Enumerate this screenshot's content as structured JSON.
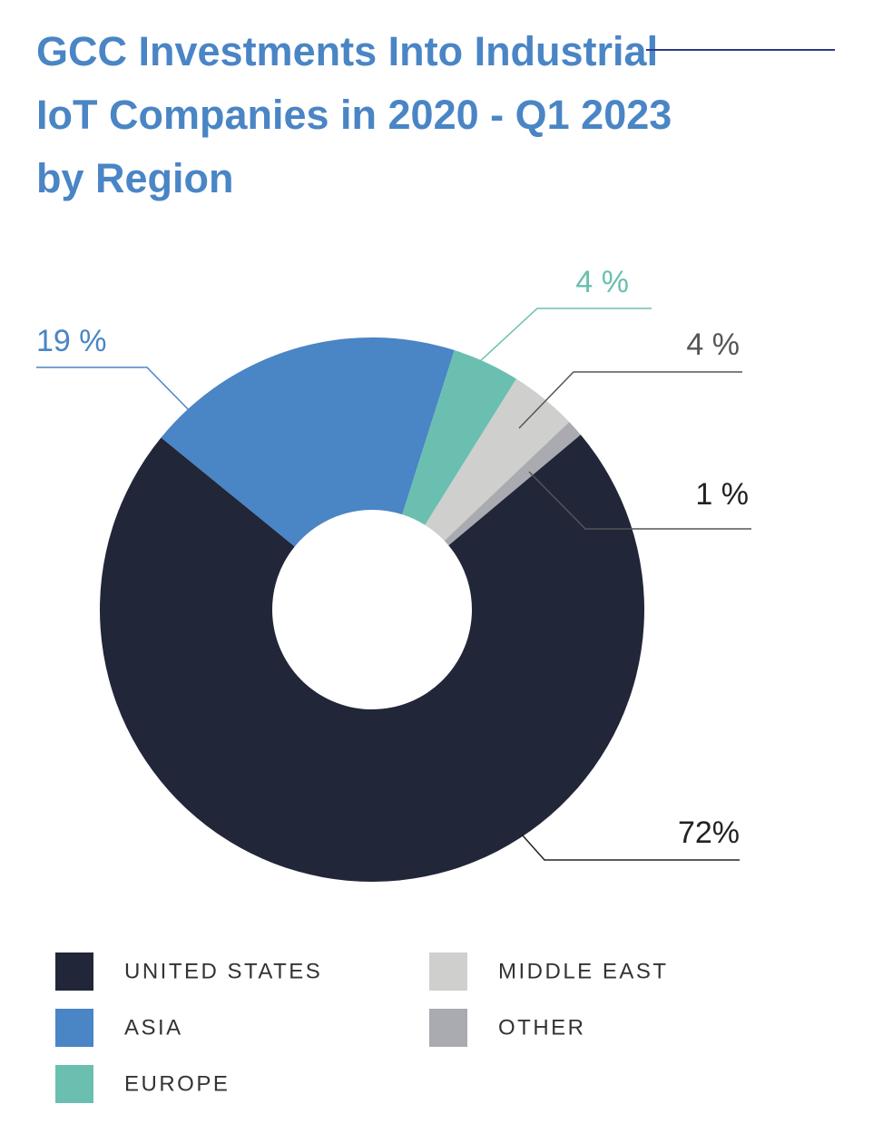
{
  "chart_data": {
    "type": "donut",
    "title": "GCC Investments Into Industrial IoT Companies in 2020 - Q1 2023 by Region",
    "categories": [
      "UNITED STATES",
      "ASIA",
      "EUROPE",
      "MIDDLE EAST",
      "OTHER"
    ],
    "values": [
      72,
      19,
      4,
      4,
      1
    ],
    "value_labels": [
      "72%",
      "19 %",
      "4 %",
      "4 %",
      "1 %"
    ],
    "colors": [
      "#212639",
      "#4a85c5",
      "#6bbfb0",
      "#cfcfcd",
      "#a9abb0"
    ]
  }
}
